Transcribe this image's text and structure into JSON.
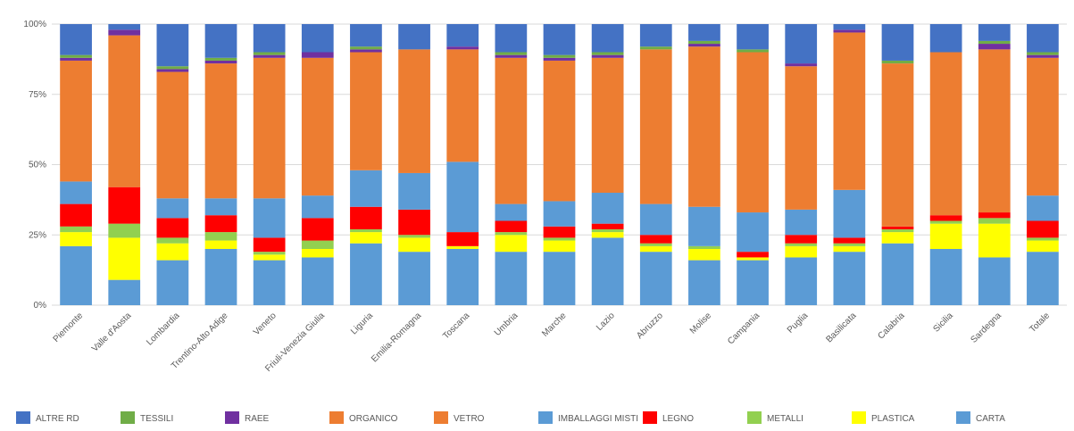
{
  "chart_data": {
    "type": "bar",
    "stacked": true,
    "title": "",
    "xlabel": "",
    "ylabel": "",
    "ylim": [
      0,
      100
    ],
    "yticks": [
      "0%",
      "25%",
      "50%",
      "75%",
      "100%"
    ],
    "grid": true,
    "legend_position": "bottom",
    "categories": [
      "Piemonte",
      "Valle d'Aosta",
      "Lombardia",
      "Trentino-Alto Adige",
      "Veneto",
      "Friuli-Venezia Giulia",
      "Liguria",
      "Emilia-Romagna",
      "Toscana",
      "Umbria",
      "Marche",
      "Lazio",
      "Abruzzo",
      "Molise",
      "Campania",
      "Puglia",
      "Basilicata",
      "Calabria",
      "Sicilia",
      "Sardegna",
      "Totale"
    ],
    "series": [
      {
        "name": "CARTA",
        "color": "#5b9bd5",
        "values": [
          21,
          9,
          16,
          20,
          16,
          17,
          22,
          19,
          20,
          19,
          19,
          24,
          19,
          16,
          16,
          17,
          19,
          22,
          20,
          17,
          19
        ]
      },
      {
        "name": "PLASTICA",
        "color": "#ffff00",
        "values": [
          5,
          15,
          6,
          3,
          2,
          3,
          4,
          5,
          1,
          6,
          4,
          2,
          2,
          4,
          1,
          4,
          2,
          4,
          9,
          12,
          4
        ]
      },
      {
        "name": "METALLI",
        "color": "#92d050",
        "values": [
          2,
          5,
          2,
          3,
          1,
          3,
          1,
          1,
          0,
          1,
          1,
          1,
          1,
          1,
          0,
          1,
          1,
          1,
          1,
          2,
          1
        ]
      },
      {
        "name": "LEGNO",
        "color": "#ff0000",
        "values": [
          8,
          13,
          7,
          6,
          5,
          8,
          8,
          9,
          5,
          4,
          4,
          2,
          3,
          0,
          2,
          3,
          2,
          1,
          2,
          2,
          6
        ]
      },
      {
        "name": "IMBALLAGGI MISTI",
        "color": "#5b9bd5",
        "values": [
          8,
          0,
          7,
          6,
          14,
          8,
          13,
          13,
          25,
          6,
          9,
          11,
          11,
          14,
          14,
          9,
          17,
          0,
          0,
          0,
          9
        ]
      },
      {
        "name": "VETRO",
        "color": "#ed7d31",
        "values": [
          0,
          0,
          0,
          0,
          0,
          0,
          0,
          0,
          0,
          0,
          0,
          0,
          0,
          0,
          0,
          0,
          0,
          0,
          0,
          0,
          0
        ]
      },
      {
        "name": "ORGANICO",
        "color": "#ed7d31",
        "values": [
          43,
          54,
          45,
          48,
          50,
          49,
          42,
          44,
          40,
          52,
          50,
          48,
          55,
          57,
          57,
          51,
          56,
          58,
          58,
          58,
          49
        ]
      },
      {
        "name": "RAEE",
        "color": "#7030a0",
        "values": [
          1,
          2,
          1,
          1,
          1,
          2,
          1,
          0,
          1,
          1,
          1,
          1,
          0,
          1,
          0,
          1,
          1,
          0,
          0,
          2,
          1
        ]
      },
      {
        "name": "TESSILI",
        "color": "#70ad47",
        "values": [
          1,
          0,
          1,
          1,
          1,
          0,
          1,
          0,
          0,
          1,
          1,
          1,
          1,
          1,
          1,
          0,
          0,
          1,
          0,
          1,
          1
        ]
      },
      {
        "name": "ALTRE RD",
        "color": "#4472c4",
        "values": [
          11,
          2,
          15,
          12,
          10,
          10,
          8,
          9,
          8,
          10,
          11,
          10,
          8,
          6,
          9,
          14,
          2,
          13,
          10,
          6,
          10
        ]
      }
    ]
  }
}
